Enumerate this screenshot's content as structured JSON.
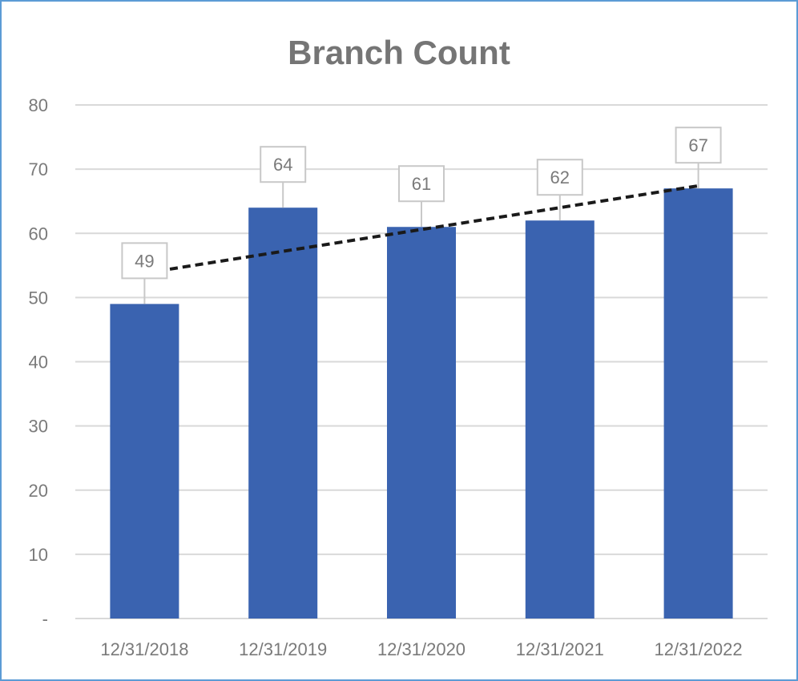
{
  "chart_data": {
    "type": "bar",
    "title": "Branch Count",
    "xlabel": "",
    "ylabel": "",
    "categories": [
      "12/31/2018",
      "12/31/2019",
      "12/31/2020",
      "12/31/2021",
      "12/31/2022"
    ],
    "values": [
      49,
      64,
      61,
      62,
      67
    ],
    "data_labels": [
      "49",
      "64",
      "61",
      "62",
      "67"
    ],
    "ylim": [
      0,
      80
    ],
    "y_ticks": [
      0,
      10,
      20,
      30,
      40,
      50,
      60,
      70,
      80
    ],
    "y_tick_labels": [
      "-",
      "10",
      "20",
      "30",
      "40",
      "50",
      "60",
      "70",
      "80"
    ],
    "grid": true,
    "legend": "none",
    "trendline": {
      "type": "linear",
      "style": "dashed",
      "color": "#1a1a1a"
    },
    "colors": {
      "bar": "#3a63b0",
      "grid": "#d9d9d9",
      "text": "#7a7a7a",
      "border": "#5b9bd5",
      "label_box": "#c8c8c8"
    }
  }
}
